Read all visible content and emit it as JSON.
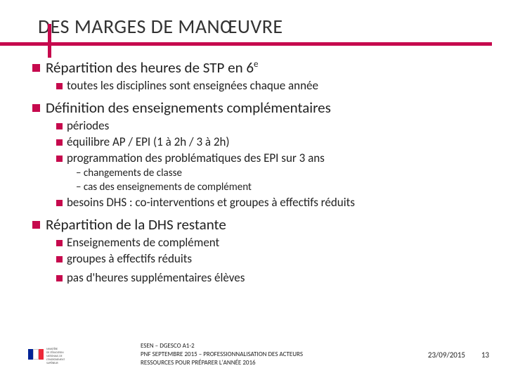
{
  "accent": "#c6094d",
  "title": "DES MARGES DE MANŒUVRE",
  "items": [
    {
      "text": "Répartition des heures de STP en 6",
      "sup": "e",
      "sub": [
        {
          "text": "toutes les disciplines sont enseignées chaque année"
        }
      ]
    },
    {
      "text": "Définition des enseignements complémentaires",
      "sub": [
        {
          "text": "périodes"
        },
        {
          "text": "équilibre AP / EPI (1 à 2h / 3 à 2h)"
        },
        {
          "text": "programmation des problématiques des EPI sur 3 ans",
          "sub3": [
            "– changements de classe",
            "– cas des enseignements de complément"
          ]
        },
        {
          "text": "besoins DHS : co-interventions et groupes à effectifs réduits"
        }
      ]
    },
    {
      "text": "Répartition de la DHS restante",
      "sub": [
        {
          "text": "Enseignements de complément"
        },
        {
          "text": "groupes à effectifs réduits"
        },
        {
          "gap": true
        },
        {
          "text": "pas d'heures supplémentaires élèves"
        }
      ]
    }
  ],
  "footer": {
    "line1": "ESEN – DGESCO A1-2",
    "line2": "PNF SEPTEMBRE 2015 – PROFESSIONNALISATION DES ACTEURS",
    "line3": "RESSOURCES POUR PRÉPARER L'ANNÉE 2016",
    "date": "23/09/2015",
    "page": "13"
  },
  "flag": [
    "#002395",
    "#ffffff",
    "#ed2939"
  ]
}
